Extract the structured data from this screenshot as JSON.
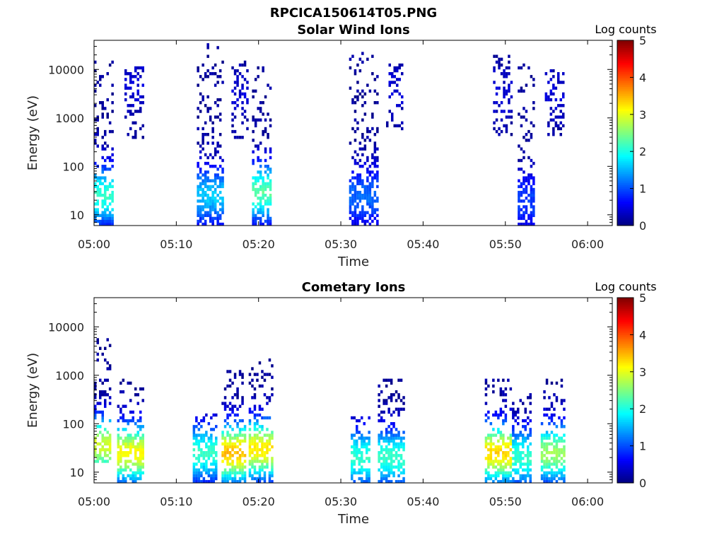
{
  "figure_title": "RPCICA150614T05.PNG",
  "colormap": [
    "#00007f",
    "#0000ff",
    "#007fff",
    "#00ffff",
    "#7fff7f",
    "#ffff00",
    "#ff7f00",
    "#ff0000",
    "#7f0000"
  ],
  "chart_data": [
    {
      "type": "heatmap",
      "title": "Solar Wind Ions",
      "xlabel": "Time",
      "ylabel": "Energy (eV)",
      "x_ticks": [
        "05:00",
        "05:10",
        "05:20",
        "05:30",
        "05:40",
        "05:50",
        "06:00"
      ],
      "y_ticks": [
        "10",
        "100",
        "1000",
        "10000"
      ],
      "y_scale": "log",
      "xlim_minutes": [
        0,
        63
      ],
      "ylim_eV": [
        6,
        40000
      ],
      "colorbar": {
        "label": "Log counts",
        "range": [
          0,
          5
        ],
        "ticks": [
          "0",
          "1",
          "2",
          "3",
          "4",
          "5"
        ]
      },
      "bursts": [
        {
          "t_start": 0.0,
          "t_end": 2.4,
          "e_min": 6,
          "e_max": 18000,
          "peak_log_counts": 2.0,
          "peak_energy": 25
        },
        {
          "t_start": 3.7,
          "t_end": 5.8,
          "e_min": 350,
          "e_max": 12000,
          "peak_log_counts": 0.3,
          "peak_energy": 5000
        },
        {
          "t_start": 12.5,
          "t_end": 15.8,
          "e_min": 6,
          "e_max": 40000,
          "peak_log_counts": 1.5,
          "peak_energy": 25
        },
        {
          "t_start": 16.7,
          "t_end": 18.8,
          "e_min": 300,
          "e_max": 15000,
          "peak_log_counts": 0.3,
          "peak_energy": 3000
        },
        {
          "t_start": 19.2,
          "t_end": 21.5,
          "e_min": 6,
          "e_max": 15000,
          "peak_log_counts": 2.2,
          "peak_energy": 30
        },
        {
          "t_start": 31.0,
          "t_end": 34.5,
          "e_min": 6,
          "e_max": 27000,
          "peak_log_counts": 1.0,
          "peak_energy": 25
        },
        {
          "t_start": 35.5,
          "t_end": 37.3,
          "e_min": 600,
          "e_max": 13000,
          "peak_log_counts": 0.3,
          "peak_energy": 4000
        },
        {
          "t_start": 48.5,
          "t_end": 50.7,
          "e_min": 400,
          "e_max": 22000,
          "peak_log_counts": 0.3,
          "peak_energy": 3000
        },
        {
          "t_start": 51.5,
          "t_end": 53.5,
          "e_min": 6,
          "e_max": 15000,
          "peak_log_counts": 0.8,
          "peak_energy": 20
        },
        {
          "t_start": 54.8,
          "t_end": 57.0,
          "e_min": 400,
          "e_max": 10000,
          "peak_log_counts": 0.3,
          "peak_energy": 3000
        }
      ]
    },
    {
      "type": "heatmap",
      "title": "Cometary Ions",
      "xlabel": "Time",
      "ylabel": "Energy (eV)",
      "x_ticks": [
        "05:00",
        "05:10",
        "05:20",
        "05:30",
        "05:40",
        "05:50",
        "06:00"
      ],
      "y_ticks": [
        "10",
        "100",
        "1000",
        "10000"
      ],
      "y_scale": "log",
      "xlim_minutes": [
        0,
        63
      ],
      "ylim_eV": [
        6,
        40000
      ],
      "colorbar": {
        "label": "Log counts",
        "range": [
          0,
          5
        ],
        "ticks": [
          "0",
          "1",
          "2",
          "3",
          "4",
          "5"
        ]
      },
      "bursts": [
        {
          "t_start": 0.0,
          "t_end": 2.0,
          "e_min": 15,
          "e_max": 6000,
          "peak_log_counts": 2.8,
          "peak_energy": 35
        },
        {
          "t_start": 2.8,
          "t_end": 5.8,
          "e_min": 6,
          "e_max": 1000,
          "peak_log_counts": 3.0,
          "peak_energy": 25
        },
        {
          "t_start": 12.0,
          "t_end": 15.0,
          "e_min": 6,
          "e_max": 160,
          "peak_log_counts": 2.0,
          "peak_energy": 25
        },
        {
          "t_start": 15.5,
          "t_end": 18.3,
          "e_min": 6,
          "e_max": 1200,
          "peak_log_counts": 3.3,
          "peak_energy": 25
        },
        {
          "t_start": 18.8,
          "t_end": 21.7,
          "e_min": 6,
          "e_max": 2500,
          "peak_log_counts": 3.1,
          "peak_energy": 30
        },
        {
          "t_start": 31.2,
          "t_end": 33.5,
          "e_min": 6,
          "e_max": 140,
          "peak_log_counts": 2.0,
          "peak_energy": 20
        },
        {
          "t_start": 34.5,
          "t_end": 37.7,
          "e_min": 6,
          "e_max": 900,
          "peak_log_counts": 2.0,
          "peak_energy": 20
        },
        {
          "t_start": 47.5,
          "t_end": 50.5,
          "e_min": 6,
          "e_max": 800,
          "peak_log_counts": 3.2,
          "peak_energy": 25
        },
        {
          "t_start": 50.8,
          "t_end": 53.0,
          "e_min": 6,
          "e_max": 400,
          "peak_log_counts": 2.0,
          "peak_energy": 20
        },
        {
          "t_start": 54.3,
          "t_end": 57.0,
          "e_min": 6,
          "e_max": 900,
          "peak_log_counts": 2.5,
          "peak_energy": 25
        }
      ]
    }
  ]
}
